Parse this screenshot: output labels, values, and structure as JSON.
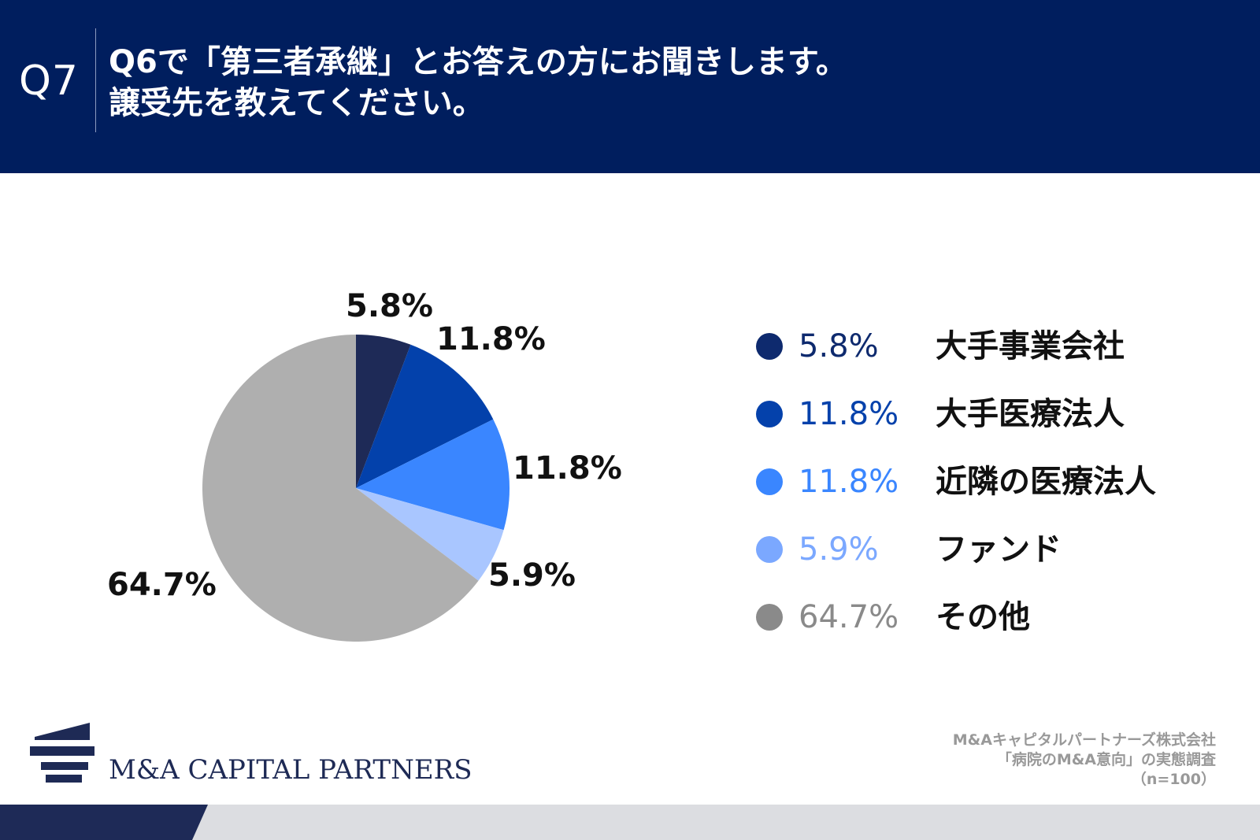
{
  "header": {
    "question_number": "Q7",
    "question_line1": "Q6で「第三者承継」とお答えの方にお聞きします。",
    "question_line2": "譲受先を教えてください。"
  },
  "chart_data": {
    "type": "pie",
    "slices": [
      {
        "label": "大手事業会社",
        "value": 5.8,
        "display": "5.8%",
        "color": "#1e2a57",
        "legend_dot": "#0e2a6e",
        "legend_text_color": "#0e2a6e"
      },
      {
        "label": "大手医療法人",
        "value": 11.8,
        "display": "11.8%",
        "color": "#0341ab",
        "legend_dot": "#0441ab",
        "legend_text_color": "#0441ab"
      },
      {
        "label": "近隣の医療法人",
        "value": 11.8,
        "display": "11.8%",
        "color": "#3a86ff",
        "legend_dot": "#3a86ff",
        "legend_text_color": "#3a86ff"
      },
      {
        "label": "ファンド",
        "value": 5.9,
        "display": "5.9%",
        "color": "#a9c6ff",
        "legend_dot": "#7ba8ff",
        "legend_text_color": "#7ba8ff"
      },
      {
        "label": "その他",
        "value": 64.7,
        "display": "64.7%",
        "color": "#afafaf",
        "legend_dot": "#8a8a8a",
        "legend_text_color": "#8a8a8a"
      }
    ]
  },
  "brand": {
    "name": "M&A CAPITAL PARTNERS",
    "colors": {
      "navy": "#001e5e",
      "logo": "#1e2a55",
      "footer_gray": "#dcdde1"
    }
  },
  "source": {
    "line1": "M&Aキャピタルパートナーズ株式会社",
    "line2": "「病院のM&A意向」の実態調査",
    "line3": "（n=100）"
  }
}
